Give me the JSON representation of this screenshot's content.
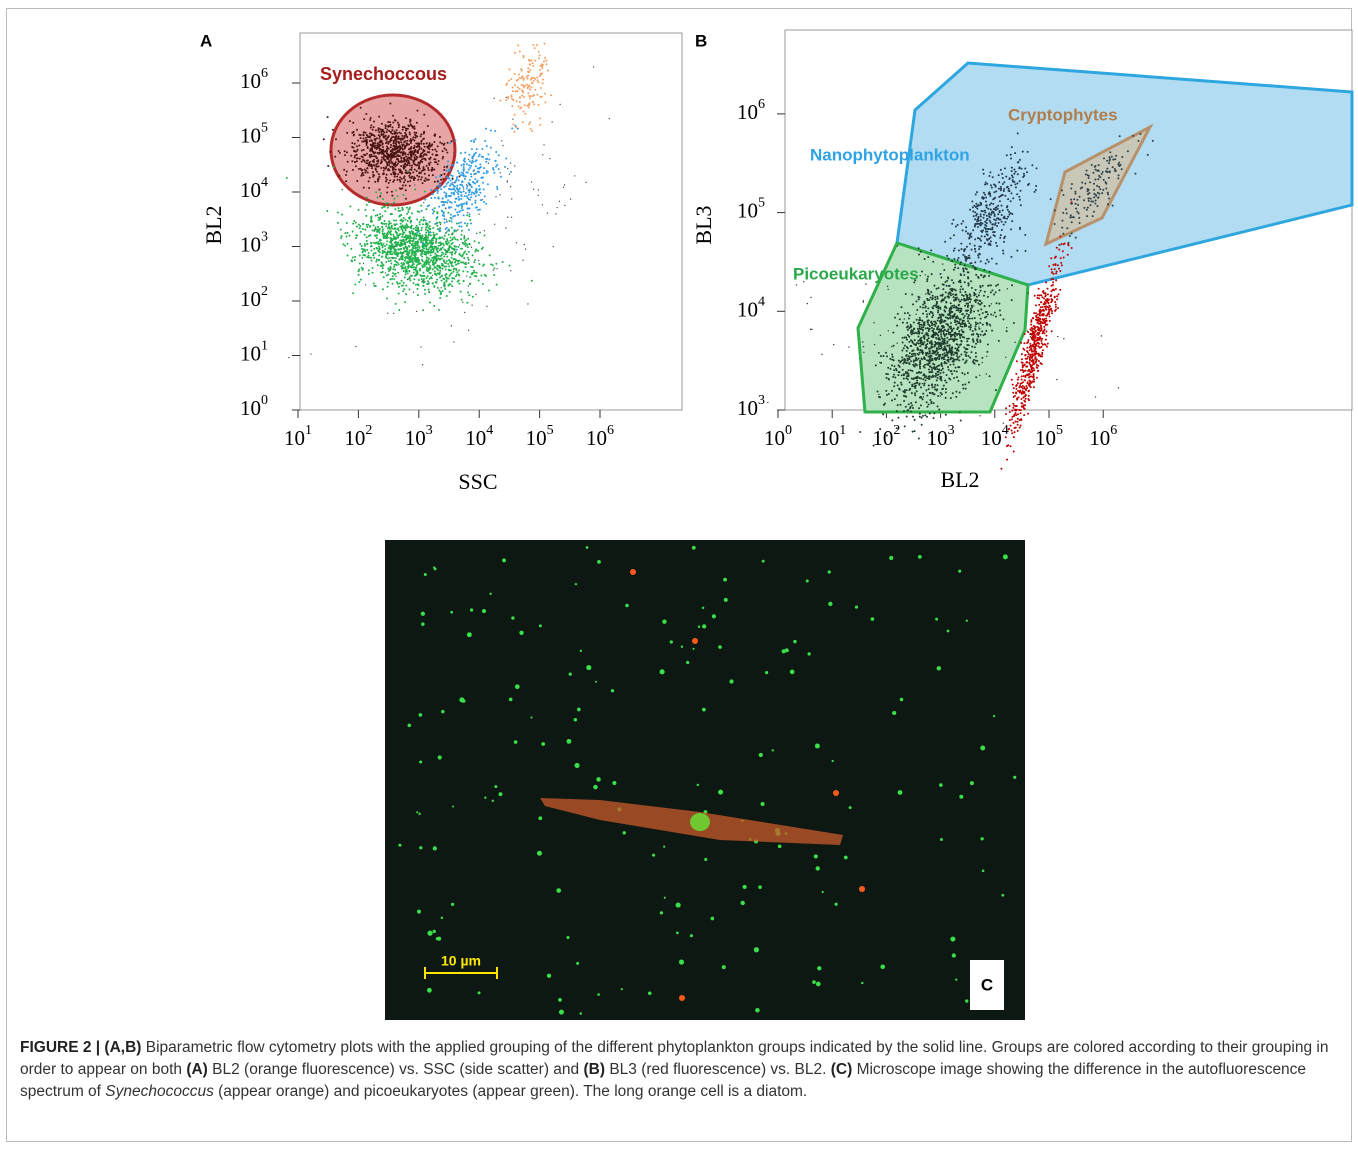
{
  "panel_a": {
    "label": "A",
    "x_label": "SSC",
    "y_label": "BL2",
    "gate_label": "Synechoccous",
    "x_ticks": [
      {
        "base": "10",
        "exp": "1"
      },
      {
        "base": "10",
        "exp": "2"
      },
      {
        "base": "10",
        "exp": "3"
      },
      {
        "base": "10",
        "exp": "4"
      },
      {
        "base": "10",
        "exp": "5"
      },
      {
        "base": "10",
        "exp": "6"
      }
    ],
    "y_ticks": [
      {
        "base": "10",
        "exp": "0"
      },
      {
        "base": "10",
        "exp": "1"
      },
      {
        "base": "10",
        "exp": "2"
      },
      {
        "base": "10",
        "exp": "3"
      },
      {
        "base": "10",
        "exp": "4"
      },
      {
        "base": "10",
        "exp": "5"
      },
      {
        "base": "10",
        "exp": "6"
      }
    ]
  },
  "panel_b": {
    "label": "B",
    "x_label": "BL2",
    "y_label": "BL3",
    "gate_labels": [
      "Nanophytoplankton",
      "Cryptophytes",
      "Picoeukaryotes"
    ],
    "x_ticks": [
      {
        "base": "10",
        "exp": "0"
      },
      {
        "base": "10",
        "exp": "1"
      },
      {
        "base": "10",
        "exp": "2"
      },
      {
        "base": "10",
        "exp": "3"
      },
      {
        "base": "10",
        "exp": "4"
      },
      {
        "base": "10",
        "exp": "5"
      },
      {
        "base": "10",
        "exp": "6"
      }
    ],
    "y_ticks": [
      {
        "base": "10",
        "exp": "3"
      },
      {
        "base": "10",
        "exp": "4"
      },
      {
        "base": "10",
        "exp": "5"
      },
      {
        "base": "10",
        "exp": "6"
      }
    ]
  },
  "panel_c": {
    "label": "C",
    "scale_bar": "10 µm"
  },
  "caption": [
    {
      "text": "FIGURE 2 | (A,B)",
      "style": "bold"
    },
    {
      "text": " Biparametric flow cytometry plots with the applied grouping of the different phytoplankton groups indicated by the solid line. Groups are colored according to their grouping in order to appear on both ",
      "style": "normal"
    },
    {
      "text": "(A)",
      "style": "bold"
    },
    {
      "text": " BL2 (orange fluorescence) vs. SSC (side scatter) and ",
      "style": "normal"
    },
    {
      "text": "(B)",
      "style": "bold"
    },
    {
      "text": " BL3 (red fluorescence) vs. BL2. ",
      "style": "normal"
    },
    {
      "text": "(C)",
      "style": "bold"
    },
    {
      "text": " Microscope image showing the difference in the autofluorescence spectrum of ",
      "style": "normal"
    },
    {
      "text": "Synechococcus",
      "style": "italic"
    },
    {
      "text": " (appear orange) and picoeukaryotes (appear green). The long orange cell is a diatom.",
      "style": "normal"
    }
  ]
}
